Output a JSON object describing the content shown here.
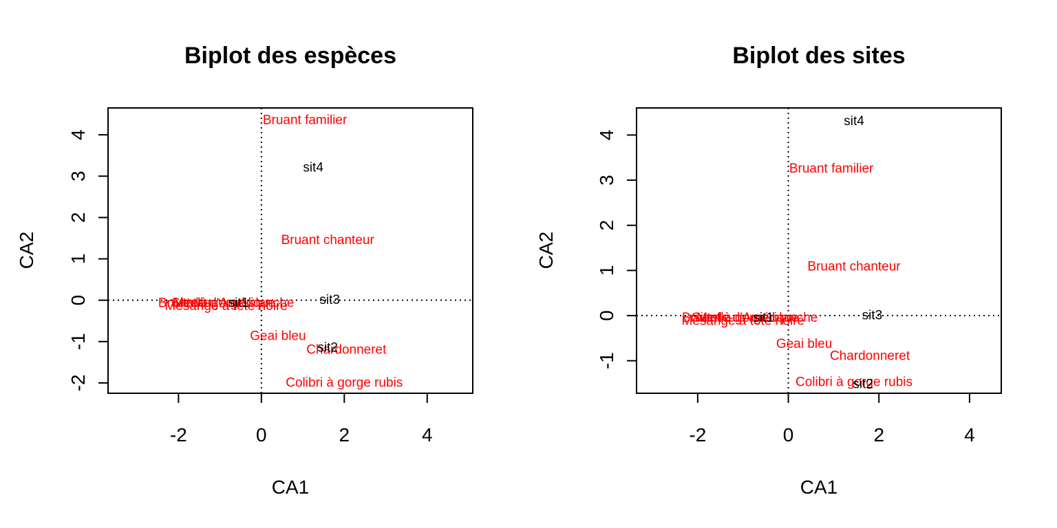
{
  "colors": {
    "species": "#ff0000",
    "sites": "#000000"
  },
  "chart_data": [
    {
      "type": "scatter",
      "title": "Biplot des espèces",
      "xlabel": "CA1",
      "ylabel": "CA2",
      "xlim": [
        -3.7,
        5.1
      ],
      "ylim": [
        -2.25,
        4.65
      ],
      "xticks": [
        -2,
        0,
        2,
        4
      ],
      "yticks": [
        -2,
        -1,
        0,
        1,
        2,
        3,
        4
      ],
      "reference_lines": {
        "x": 0,
        "y": 0,
        "style": "dotted"
      },
      "series": [
        {
          "name": "species",
          "color": "#ff0000",
          "points": [
            {
              "label": "Bruant familier",
              "x": 1.05,
              "y": 4.35
            },
            {
              "label": "Bruant chanteur",
              "x": 1.6,
              "y": 1.45
            },
            {
              "label": "Geai bleu",
              "x": 0.4,
              "y": -0.87
            },
            {
              "label": "Chardonneret",
              "x": 2.05,
              "y": -1.2
            },
            {
              "label": "Colibri à gorge rubis",
              "x": 2.0,
              "y": -2.0
            },
            {
              "label": "Merle d'Amérique",
              "x": -0.9,
              "y": -0.07
            },
            {
              "label": "Bruant à gorge blanche",
              "x": -0.85,
              "y": -0.07
            },
            {
              "label": "Mésange à tête noire",
              "x": -0.85,
              "y": -0.15
            },
            {
              "label": "Sittelle",
              "x": -1.7,
              "y": -0.07
            }
          ]
        },
        {
          "name": "sites",
          "color": "#000000",
          "points": [
            {
              "label": "sit4",
              "x": 1.25,
              "y": 3.2
            },
            {
              "label": "sit3",
              "x": 1.65,
              "y": 0.0
            },
            {
              "label": "sit2",
              "x": 1.6,
              "y": -1.15
            },
            {
              "label": "sit1",
              "x": -0.55,
              "y": -0.07
            }
          ]
        }
      ]
    },
    {
      "type": "scatter",
      "title": "Biplot des sites",
      "xlabel": "CA1",
      "ylabel": "CA2",
      "xlim": [
        -3.35,
        4.7
      ],
      "ylim": [
        -1.72,
        4.6
      ],
      "xticks": [
        -2,
        0,
        2,
        4
      ],
      "yticks": [
        -1,
        0,
        1,
        2,
        3,
        4
      ],
      "reference_lines": {
        "x": 0,
        "y": 0,
        "style": "dotted"
      },
      "series": [
        {
          "name": "species",
          "color": "#ff0000",
          "points": [
            {
              "label": "Bruant familier",
              "x": 0.95,
              "y": 3.25
            },
            {
              "label": "Bruant chanteur",
              "x": 1.45,
              "y": 1.08
            },
            {
              "label": "Geai bleu",
              "x": 0.35,
              "y": -0.63
            },
            {
              "label": "Chardonneret",
              "x": 1.8,
              "y": -0.9
            },
            {
              "label": "Colibri à gorge rubis",
              "x": 1.45,
              "y": -1.48
            },
            {
              "label": "Merle d'Amérique",
              "x": -0.9,
              "y": -0.05
            },
            {
              "label": "Bruant à gorge blanche",
              "x": -0.85,
              "y": -0.05
            },
            {
              "label": "Mésange à tête noire",
              "x": -1.0,
              "y": -0.12
            },
            {
              "label": "Sittelle",
              "x": -1.7,
              "y": -0.05
            }
          ]
        },
        {
          "name": "sites",
          "color": "#000000",
          "points": [
            {
              "label": "sit4",
              "x": 1.45,
              "y": 4.3
            },
            {
              "label": "sit3",
              "x": 1.85,
              "y": 0.0
            },
            {
              "label": "sit2",
              "x": 1.65,
              "y": -1.52
            },
            {
              "label": "sit1",
              "x": -0.55,
              "y": -0.05
            }
          ]
        }
      ]
    }
  ]
}
